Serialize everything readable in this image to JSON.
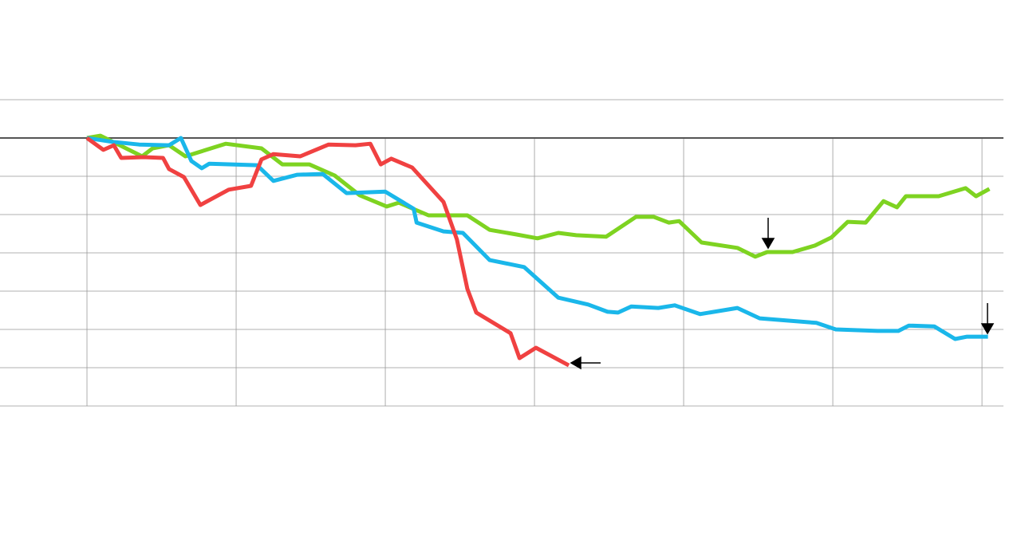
{
  "chart_data": {
    "type": "line",
    "xlim": [
      -0.583,
      6.144
    ],
    "xticks": [
      0,
      1,
      2,
      3,
      4,
      5,
      6
    ],
    "ylim": [
      30,
      110
    ],
    "yticks": [
      30,
      40,
      50,
      60,
      70,
      80,
      90,
      100,
      110
    ],
    "baseline": 100,
    "grid": true,
    "series": [
      {
        "color": "#7ed321",
        "x": [
          0,
          0.09,
          0.22,
          0.37,
          0.44,
          0.55,
          0.66,
          0.93,
          1.17,
          1.31,
          1.49,
          1.66,
          1.83,
          2.01,
          2.09,
          2.29,
          2.55,
          2.7,
          2.88,
          3.02,
          3.16,
          3.28,
          3.48,
          3.68,
          3.8,
          3.9,
          3.97,
          4.12,
          4.36,
          4.48,
          4.56,
          4.73,
          4.88,
          4.99,
          5.1,
          5.22,
          5.34,
          5.43,
          5.49,
          5.71,
          5.89,
          5.96,
          6.05
        ],
        "values": [
          100,
          100.6,
          98.1,
          95.2,
          97.3,
          98.1,
          95.2,
          98.5,
          97.3,
          93.1,
          93.1,
          90.2,
          85,
          82.1,
          83.1,
          79.8,
          79.8,
          76,
          74.8,
          73.8,
          75.2,
          74.6,
          74.2,
          79.4,
          79.4,
          77.9,
          78.3,
          72.7,
          71.3,
          69,
          70.2,
          70.2,
          71.9,
          74,
          78.1,
          77.9,
          83.5,
          81.9,
          84.8,
          84.8,
          86.9,
          84.8,
          86.7
        ]
      },
      {
        "color": "#1ab7ea",
        "x": [
          0,
          0.17,
          0.35,
          0.55,
          0.63,
          0.7,
          0.77,
          0.82,
          1.14,
          1.25,
          1.41,
          1.58,
          1.74,
          2.0,
          2.19,
          2.21,
          2.39,
          2.52,
          2.7,
          2.93,
          3.16,
          3.36,
          3.49,
          3.56,
          3.65,
          3.83,
          3.94,
          4.11,
          4.36,
          4.51,
          4.89,
          5.02,
          5.3,
          5.44,
          5.51,
          5.68,
          5.82,
          5.9,
          6.04
        ],
        "values": [
          100,
          99,
          98.3,
          98.1,
          100,
          94,
          92.1,
          93.3,
          92.9,
          88.8,
          90.4,
          90.6,
          85.6,
          86,
          81.5,
          77.9,
          75.6,
          75.2,
          68.1,
          66.3,
          58.3,
          56.5,
          54.6,
          54.4,
          56,
          55.6,
          56.3,
          54,
          55.6,
          52.9,
          51.7,
          50,
          49.6,
          49.6,
          51,
          50.8,
          47.5,
          48.1,
          48.1
        ]
      },
      {
        "color": "#f04141",
        "x": [
          0,
          0.11,
          0.18,
          0.23,
          0.38,
          0.51,
          0.55,
          0.65,
          0.76,
          0.95,
          1.1,
          1.17,
          1.25,
          1.43,
          1.62,
          1.8,
          1.9,
          1.97,
          2.04,
          2.18,
          2.39,
          2.48,
          2.55,
          2.61,
          2.84,
          2.9,
          3.01,
          3.23
        ],
        "values": [
          100,
          96.9,
          98.1,
          94.8,
          95,
          94.8,
          91.9,
          89.8,
          82.5,
          86.5,
          87.5,
          94.4,
          95.8,
          95.2,
          98.3,
          98.1,
          98.5,
          93.1,
          94.6,
          92.3,
          83.3,
          73.5,
          60.6,
          54.4,
          49,
          42.5,
          45.2,
          40.6
        ]
      }
    ]
  }
}
